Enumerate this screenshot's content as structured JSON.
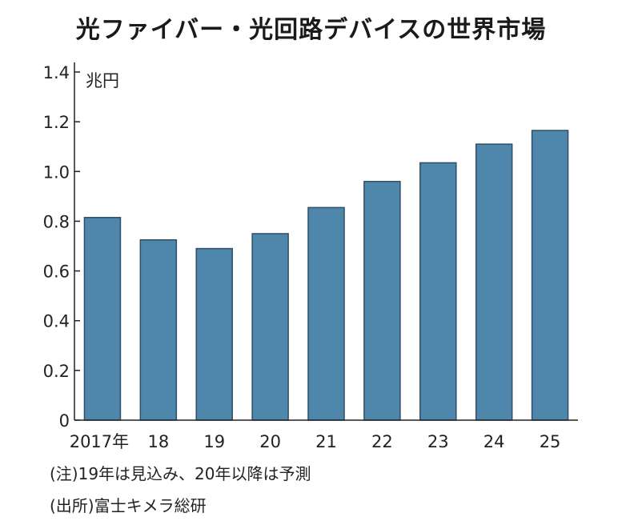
{
  "title": "光ファイバー・光回路デバイスの世界市場",
  "notes": {
    "note1": "(注)19年は見込み、20年以降は予測",
    "note2": "(出所)富士キメラ総研"
  },
  "colors": {
    "bar": "#4f86ab",
    "bar_edge": "#2f4f66",
    "axis": "#222222"
  },
  "chart_data": {
    "type": "bar",
    "title": "光ファイバー・光回路デバイスの世界市場",
    "ylabel": "兆円",
    "categories": [
      "2017年",
      "18",
      "19",
      "20",
      "21",
      "22",
      "23",
      "24",
      "25"
    ],
    "values": [
      0.815,
      0.725,
      0.69,
      0.75,
      0.855,
      0.96,
      1.035,
      1.11,
      1.165
    ],
    "ylim": [
      0,
      1.4
    ],
    "yticks": [
      0,
      0.2,
      0.4,
      0.6,
      0.8,
      1.0,
      1.2,
      1.4
    ],
    "ytick_labels": [
      "0",
      "0.2",
      "0.4",
      "0.6",
      "0.8",
      "1.0",
      "1.2",
      "1.4"
    ],
    "grid": false,
    "legend": "none"
  }
}
